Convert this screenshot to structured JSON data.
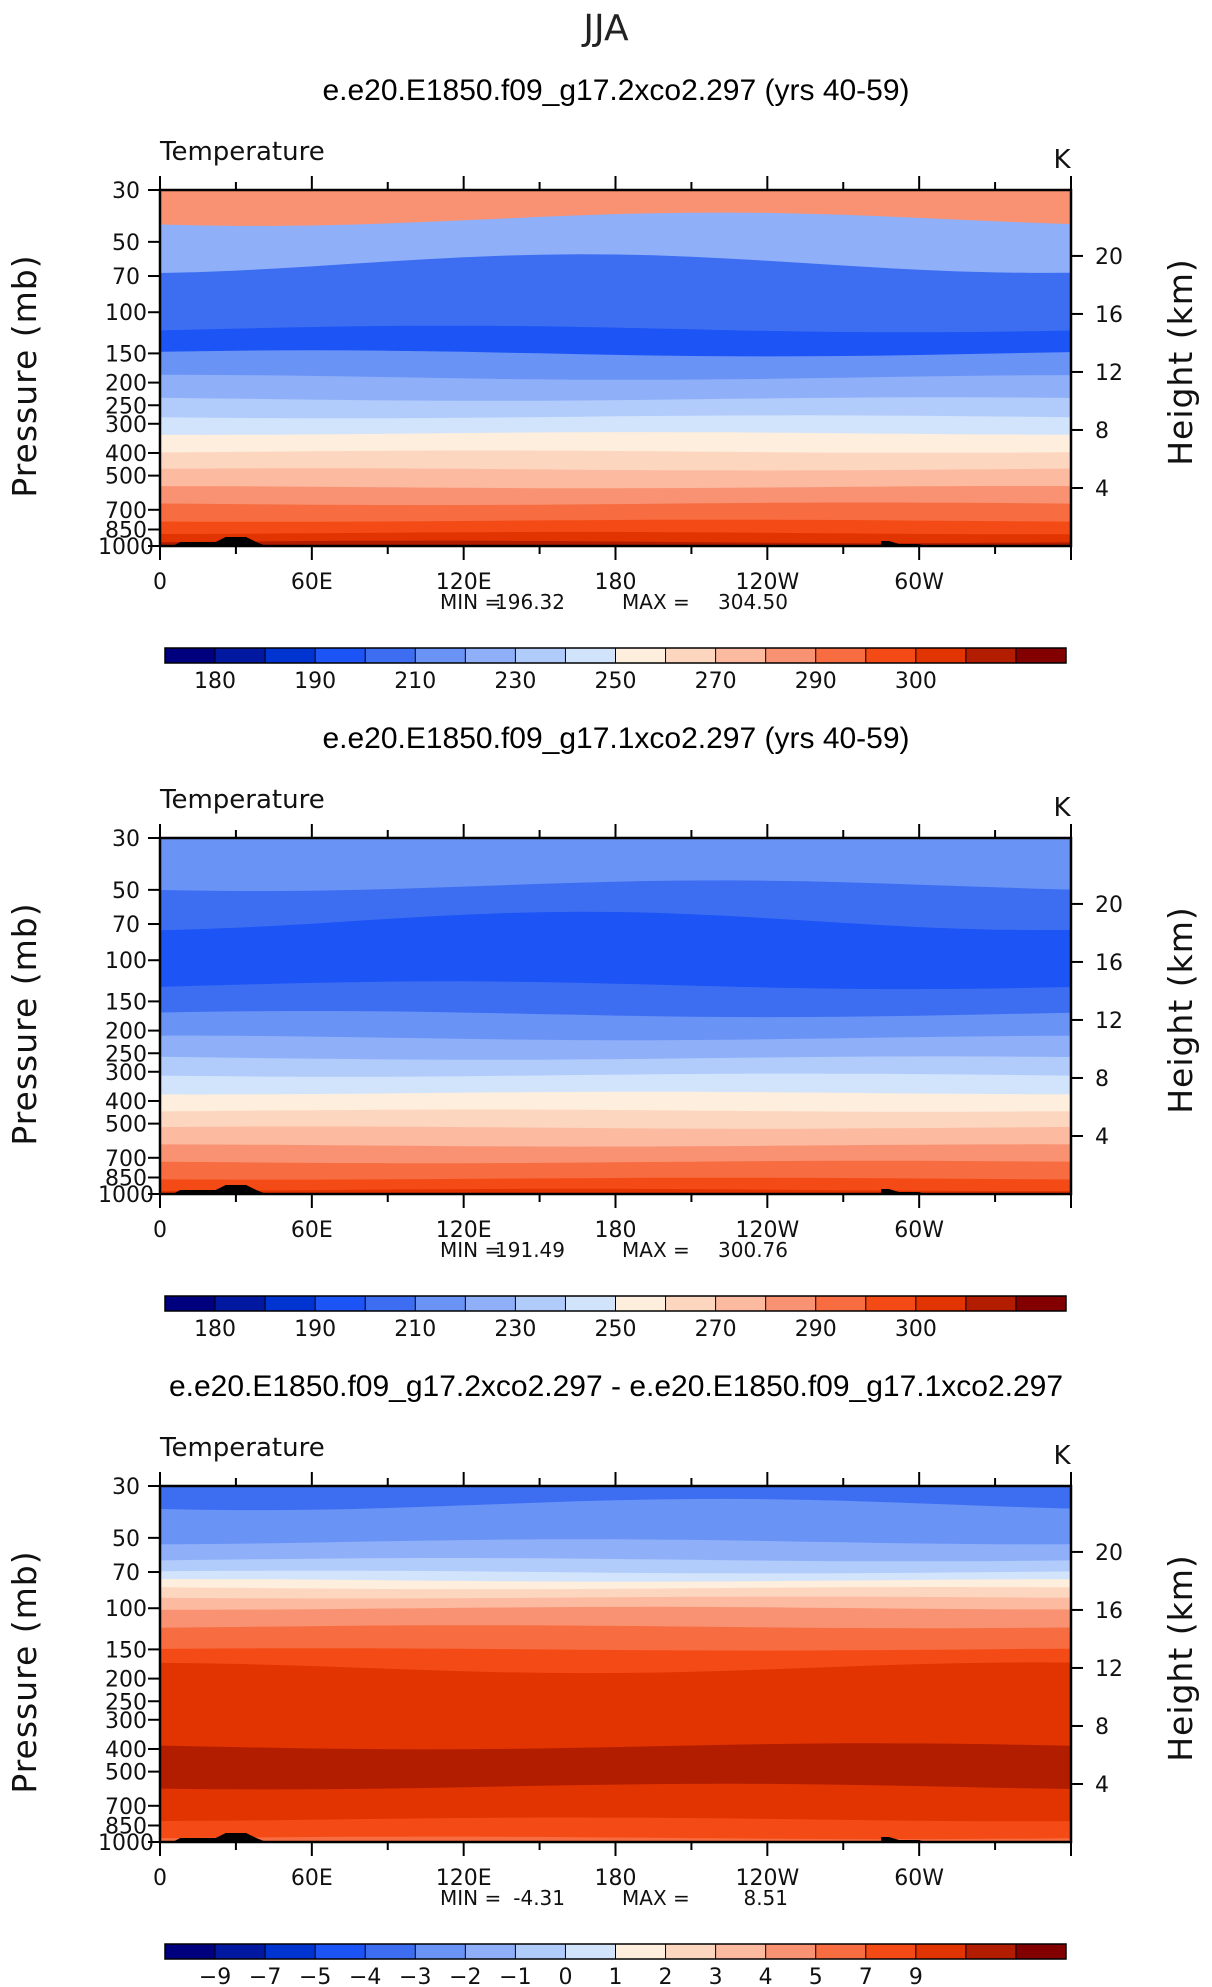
{
  "figure_title": "JJA",
  "colors": {
    "abs_levels": [
      "#00007f",
      "#0019a0",
      "#0034d1",
      "#1c54f5",
      "#3d6ef2",
      "#6a93f6",
      "#8fb0f8",
      "#b1cbfb",
      "#d2e4fc",
      "#fdeedd",
      "#fdd6c0",
      "#fcbaa0",
      "#f99272",
      "#f76c40",
      "#f44b16",
      "#e23400",
      "#b21d00",
      "#830000"
    ],
    "diff_levels": [
      "#00007f",
      "#0019a0",
      "#0034d1",
      "#1c54f5",
      "#3d6ef2",
      "#6a93f6",
      "#8fb0f8",
      "#b1cbfb",
      "#d2e4fc",
      "#fdeedd",
      "#fdd6c0",
      "#fcbaa0",
      "#f99272",
      "#f76c40",
      "#f44b16",
      "#e23400",
      "#b21d00",
      "#830000"
    ],
    "topography": "#000000"
  },
  "chart_data": [
    {
      "type": "heatmap",
      "title": "e.e20.E1850.f09_g17.2xco2.297 (yrs 40-59)",
      "left_label": "Temperature",
      "right_label": "K",
      "ylabel": "Pressure (mb)",
      "y2label": "Height (km)",
      "x_ticks": [
        "0",
        "60E",
        "120E",
        "180",
        "120W",
        "60W"
      ],
      "y_ticks": [
        "30",
        "50",
        "70",
        "100",
        "150",
        "200",
        "250",
        "300",
        "400",
        "500",
        "700",
        "850",
        "1000"
      ],
      "y2_ticks": [
        "20",
        "16",
        "12",
        "8",
        "4"
      ],
      "x_range": [
        0,
        360
      ],
      "y_range": [
        1000,
        30
      ],
      "y_scale": "log",
      "min_label": "MIN =",
      "min_value": "196.32",
      "max_label": "MAX =",
      "max_value": "304.50",
      "colorbar_labels": [
        "180",
        "190",
        "210",
        "230",
        "250",
        "270",
        "290",
        "300"
      ],
      "band_levels": [
        12,
        6,
        4,
        3,
        5,
        6,
        7,
        8,
        9,
        10,
        11,
        12,
        13,
        14,
        15,
        16
      ],
      "band_bounds_mb": [
        30,
        40,
        62,
        118,
        150,
        190,
        235,
        280,
        330,
        395,
        470,
        560,
        660,
        780,
        880,
        960,
        1000
      ]
    },
    {
      "type": "heatmap",
      "title": "e.e20.E1850.f09_g17.1xco2.297 (yrs 40-59)",
      "left_label": "Temperature",
      "right_label": "K",
      "ylabel": "Pressure (mb)",
      "y2label": "Height (km)",
      "x_ticks": [
        "0",
        "60E",
        "120E",
        "180",
        "120W",
        "60W"
      ],
      "y_ticks": [
        "30",
        "50",
        "70",
        "100",
        "150",
        "200",
        "250",
        "300",
        "400",
        "500",
        "700",
        "850",
        "1000"
      ],
      "y2_ticks": [
        "20",
        "16",
        "12",
        "8",
        "4"
      ],
      "x_range": [
        0,
        360
      ],
      "y_range": [
        1000,
        30
      ],
      "y_scale": "log",
      "min_label": "MIN =",
      "min_value": "191.49",
      "max_label": "MAX =",
      "max_value": "300.76",
      "colorbar_labels": [
        "180",
        "190",
        "210",
        "230",
        "250",
        "270",
        "290",
        "300"
      ],
      "band_levels": [
        5,
        4,
        3,
        4,
        5,
        6,
        7,
        8,
        9,
        10,
        11,
        12,
        13,
        14,
        15
      ],
      "band_bounds_mb": [
        30,
        48,
        68,
        128,
        170,
        215,
        262,
        310,
        370,
        440,
        520,
        620,
        730,
        860,
        960,
        1000
      ]
    },
    {
      "type": "heatmap",
      "title": "e.e20.E1850.f09_g17.2xco2.297 - e.e20.E1850.f09_g17.1xco2.297",
      "left_label": "Temperature",
      "right_label": "K",
      "ylabel": "Pressure (mb)",
      "y2label": "Height (km)",
      "x_ticks": [
        "0",
        "60E",
        "120E",
        "180",
        "120W",
        "60W"
      ],
      "y_ticks": [
        "30",
        "50",
        "70",
        "100",
        "150",
        "200",
        "250",
        "300",
        "400",
        "500",
        "700",
        "850",
        "1000"
      ],
      "y2_ticks": [
        "20",
        "16",
        "12",
        "8",
        "4"
      ],
      "x_range": [
        0,
        360
      ],
      "y_range": [
        1000,
        30
      ],
      "y_scale": "log",
      "min_label": "MIN =",
      "min_value": "-4.31",
      "max_label": "MAX =",
      "max_value": "8.51",
      "colorbar_labels": [
        "-9",
        "-7",
        "-5",
        "-4",
        "-3",
        "-2",
        "-1",
        "0",
        "1",
        "2",
        "3",
        "4",
        "5",
        "7",
        "9"
      ],
      "band_levels": [
        4,
        5,
        6,
        7,
        8,
        9,
        10,
        11,
        12,
        13,
        14,
        15,
        16,
        15,
        14,
        13
      ],
      "band_bounds_mb": [
        30,
        36,
        52,
        62,
        70,
        76,
        82,
        90,
        100,
        120,
        150,
        180,
        390,
        580,
        800,
        960,
        1000
      ]
    }
  ]
}
